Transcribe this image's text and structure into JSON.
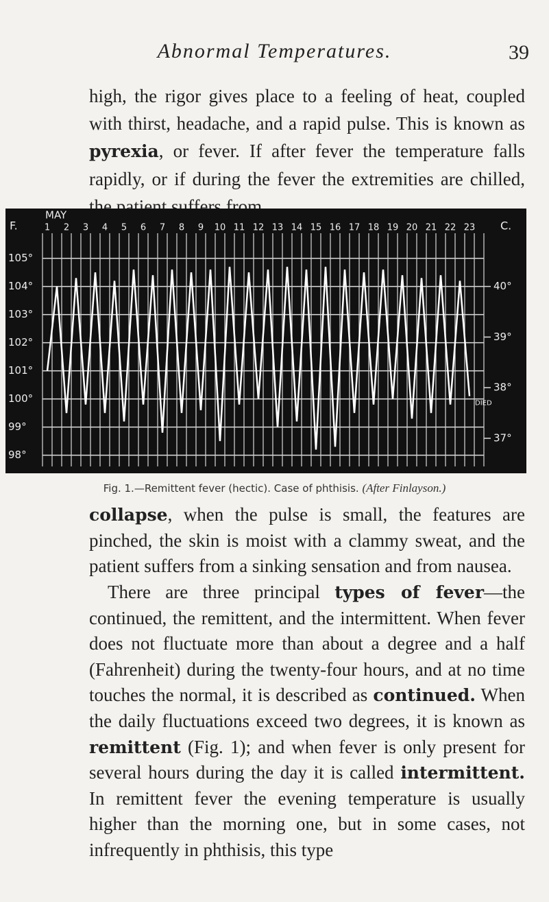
{
  "header": {
    "title": "Abnormal Temperatures.",
    "page_number": "39"
  },
  "paragraph_1": [
    "high, the rigor gives place to a feeling of heat, coupled with thirst, headache, and a rapid pulse. This is known as ",
    "pyrexia",
    ", or fever. If after fever the temperature falls rapidly, or if during the fever the extremities are chilled, the patient suffers from"
  ],
  "figure": {
    "caption": "Fig. 1.—Remittent fever (hectic). Case of phthisis.",
    "credit": "(After Finlayson.)",
    "chart_data": {
      "type": "line",
      "month": "MAY",
      "y_axis_title": "F.",
      "y2_axis_title": "C.",
      "annotation": "DIED",
      "categories": [
        1,
        null,
        2,
        null,
        3,
        null,
        4,
        null,
        5,
        null,
        6,
        null,
        7,
        null,
        8,
        null,
        9,
        null,
        10,
        null,
        11,
        null,
        12,
        null,
        13,
        null,
        14,
        null,
        15,
        null,
        16,
        null,
        17,
        null,
        18,
        null,
        19,
        null,
        20,
        null,
        21,
        null,
        22,
        null,
        23,
        null
      ],
      "values": [
        101,
        104,
        99.5,
        104.3,
        99.8,
        104.5,
        99.5,
        104.2,
        99.2,
        104.6,
        99.8,
        104.4,
        98.8,
        104.6,
        99.5,
        104.5,
        99.6,
        104.6,
        98.5,
        104.7,
        99.8,
        104.5,
        100,
        104.6,
        99,
        104.7,
        99.2,
        104.6,
        98.2,
        104.7,
        98.3,
        104.6,
        99.5,
        104.5,
        99.8,
        104.6,
        100,
        104.4,
        99.3,
        104.3,
        99.5,
        104.4,
        99.8,
        104.2,
        100.1,
        null
      ],
      "ylim": [
        97.6,
        105.6
      ],
      "yticks": [
        {
          "value": 105,
          "label": "105°"
        },
        {
          "value": 104,
          "label": "104°"
        },
        {
          "value": 103,
          "label": "103°"
        },
        {
          "value": 102,
          "label": "102°"
        },
        {
          "value": 101,
          "label": "101°"
        },
        {
          "value": 100,
          "label": "100°"
        },
        {
          "value": 99,
          "label": "99°"
        },
        {
          "value": 98,
          "label": "98°"
        }
      ],
      "y2lim": [
        36.444,
        40.889
      ],
      "y2ticks": [
        {
          "value": 40,
          "label": "40°"
        },
        {
          "value": 39,
          "label": "39°"
        },
        {
          "value": 38,
          "label": "38°"
        },
        {
          "value": 37,
          "label": "37°"
        }
      ],
      "color": "#ffffff",
      "grid": true
    }
  },
  "paragraph_2": [
    "collapse",
    ", when the pulse is small, the features are pinched, the skin is moist with a clammy sweat, and the patient suffers from a sinking sensation and from nausea."
  ],
  "paragraph_3": [
    "There are three principal ",
    "types of fever",
    "—the continued, the remittent, and the intermittent. When fever does not fluctuate more than about a degree and a half (Fahrenheit) during the twenty-four hours, and at no time touches the normal, it is described as ",
    "continued.",
    " When the daily fluctuations exceed two degrees, it is known as ",
    "remittent",
    " (Fig. 1); and when fever is only present for several hours during the day it is called ",
    "intermittent.",
    " In remittent fever the evening temperature is usually higher than the morning one, but in some cases, not infrequently in phthisis, this type"
  ]
}
